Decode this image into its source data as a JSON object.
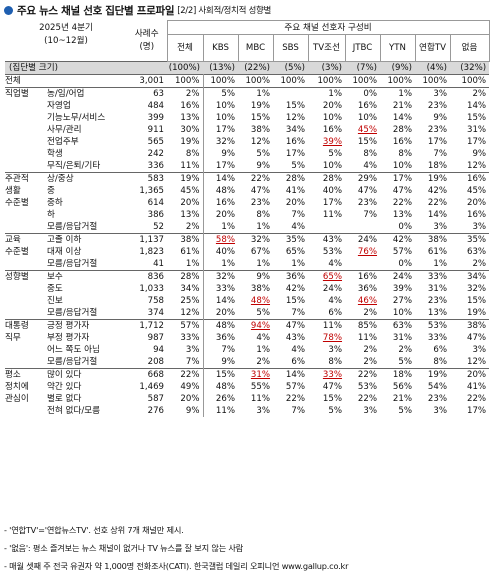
{
  "title": {
    "main": "주요 뉴스 채널 선호 집단별 프로파일",
    "sub": "[2/2] 사회적/정치적 성향별"
  },
  "header": {
    "period_line1": "2025년 4분기",
    "period_line2": "(10~12월)",
    "sample_label": "사례수 (명)",
    "channel_group": "주요 채널 선호자 구성비",
    "group_size_label": "(집단별 크기)",
    "channels": [
      "전체",
      "KBS",
      "MBC",
      "SBS",
      "TV조선",
      "JTBC",
      "YTN",
      "연합TV",
      "없음"
    ],
    "sizes": [
      "(100%)",
      "(13%)",
      "(22%)",
      "(5%)",
      "(3%)",
      "(7%)",
      "(9%)",
      "(4%)",
      "(32%)"
    ]
  },
  "rows": [
    {
      "c1": "전체",
      "c2": "",
      "n": "3,001",
      "v": [
        "100%",
        "100%",
        "100%",
        "100%",
        "100%",
        "100%",
        "100%",
        "100%",
        "100%"
      ],
      "hl": [],
      "first": true
    },
    {
      "c1": "직업별",
      "c2": "농/임/어업",
      "n": "63",
      "v": [
        "2%",
        "5%",
        "1%",
        "",
        "1%",
        "0%",
        "1%",
        "3%",
        "2%"
      ],
      "hl": [],
      "first": true
    },
    {
      "c1": "",
      "c2": "자영업",
      "n": "484",
      "v": [
        "16%",
        "10%",
        "19%",
        "15%",
        "20%",
        "16%",
        "21%",
        "23%",
        "14%"
      ],
      "hl": []
    },
    {
      "c1": "",
      "c2": "기능노무/서비스",
      "n": "399",
      "v": [
        "13%",
        "10%",
        "15%",
        "12%",
        "10%",
        "10%",
        "14%",
        "9%",
        "15%"
      ],
      "hl": []
    },
    {
      "c1": "",
      "c2": "사무/관리",
      "n": "911",
      "v": [
        "30%",
        "17%",
        "38%",
        "34%",
        "16%",
        "45%",
        "28%",
        "23%",
        "31%"
      ],
      "hl": [
        5
      ]
    },
    {
      "c1": "",
      "c2": "전업주부",
      "n": "565",
      "v": [
        "19%",
        "32%",
        "12%",
        "16%",
        "39%",
        "15%",
        "16%",
        "17%",
        "17%"
      ],
      "hl": [
        4
      ]
    },
    {
      "c1": "",
      "c2": "학생",
      "n": "242",
      "n2": "",
      "v": [
        "8%",
        "9%",
        "5%",
        "17%",
        "5%",
        "8%",
        "8%",
        "7%",
        "9%"
      ],
      "hl": []
    },
    {
      "c1": "",
      "c2": "무직/은퇴/기타",
      "n": "336",
      "v": [
        "11%",
        "17%",
        "9%",
        "5%",
        "10%",
        "4%",
        "10%",
        "18%",
        "12%"
      ],
      "hl": []
    },
    {
      "c1": "주관적",
      "c2": "상/중상",
      "n": "583",
      "v": [
        "19%",
        "14%",
        "22%",
        "28%",
        "28%",
        "29%",
        "17%",
        "19%",
        "16%"
      ],
      "hl": [],
      "first": true
    },
    {
      "c1": "생활",
      "c2": "중",
      "n": "1,365",
      "v": [
        "45%",
        "48%",
        "47%",
        "41%",
        "40%",
        "47%",
        "47%",
        "42%",
        "45%"
      ],
      "hl": []
    },
    {
      "c1": "수준별",
      "c2": "중하",
      "n": "614",
      "v": [
        "20%",
        "16%",
        "23%",
        "20%",
        "17%",
        "23%",
        "22%",
        "22%",
        "20%"
      ],
      "hl": []
    },
    {
      "c1": "",
      "c2": "하",
      "n": "386",
      "v": [
        "13%",
        "20%",
        "8%",
        "7%",
        "11%",
        "7%",
        "13%",
        "14%",
        "16%"
      ],
      "hl": []
    },
    {
      "c1": "",
      "c2": "모름/응답거절",
      "n": "52",
      "v": [
        "2%",
        "1%",
        "1%",
        "4%",
        "",
        "",
        "0%",
        "3%",
        "3%"
      ],
      "hl": []
    },
    {
      "c1": "교육",
      "c2": "고졸 이하",
      "n": "1,137",
      "v": [
        "38%",
        "58%",
        "32%",
        "35%",
        "43%",
        "24%",
        "42%",
        "38%",
        "35%"
      ],
      "hl": [
        1
      ],
      "first": true
    },
    {
      "c1": "수준별",
      "c2": "대재 이상",
      "n": "1,823",
      "v": [
        "61%",
        "40%",
        "67%",
        "65%",
        "53%",
        "76%",
        "57%",
        "61%",
        "63%"
      ],
      "hl": [
        5
      ]
    },
    {
      "c1": "",
      "c2": "모름/응답거절",
      "n": "41",
      "v": [
        "1%",
        "1%",
        "1%",
        "1%",
        "4%",
        "",
        "0%",
        "1%",
        "2%"
      ],
      "hl": []
    },
    {
      "c1": "성향별",
      "c2": "보수",
      "n": "836",
      "v": [
        "28%",
        "32%",
        "9%",
        "36%",
        "65%",
        "16%",
        "24%",
        "33%",
        "34%"
      ],
      "hl": [
        4
      ],
      "first": true
    },
    {
      "c1": "",
      "c2": "중도",
      "n": "1,033",
      "v": [
        "34%",
        "33%",
        "38%",
        "42%",
        "24%",
        "36%",
        "39%",
        "31%",
        "32%"
      ],
      "hl": []
    },
    {
      "c1": "",
      "c2": "진보",
      "n": "758",
      "v": [
        "25%",
        "14%",
        "48%",
        "15%",
        "4%",
        "46%",
        "27%",
        "23%",
        "15%"
      ],
      "hl": [
        2,
        5
      ]
    },
    {
      "c1": "",
      "c2": "모름/응답거절",
      "n": "374",
      "v": [
        "12%",
        "20%",
        "5%",
        "7%",
        "6%",
        "2%",
        "10%",
        "13%",
        "19%"
      ],
      "hl": []
    },
    {
      "c1": "대통령",
      "c2": "긍정 평가자",
      "n": "1,712",
      "v": [
        "57%",
        "48%",
        "94%",
        "47%",
        "11%",
        "85%",
        "63%",
        "53%",
        "38%"
      ],
      "hl": [
        2
      ],
      "first": true
    },
    {
      "c1": "직무",
      "c2": "부정 평가자",
      "n": "987",
      "v": [
        "33%",
        "36%",
        "4%",
        "43%",
        "78%",
        "11%",
        "31%",
        "33%",
        "47%"
      ],
      "hl": [
        4
      ]
    },
    {
      "c1": "",
      "c2": "어느 쪽도 아님",
      "n": "94",
      "v": [
        "3%",
        "7%",
        "1%",
        "4%",
        "3%",
        "2%",
        "2%",
        "6%",
        "3%"
      ],
      "hl": []
    },
    {
      "c1": "",
      "c2": "모름/응답거절",
      "n": "208",
      "v": [
        "7%",
        "9%",
        "2%",
        "6%",
        "8%",
        "2%",
        "5%",
        "8%",
        "12%"
      ],
      "hl": []
    },
    {
      "c1": "평소",
      "c2": "많이 있다",
      "n": "668",
      "v": [
        "22%",
        "15%",
        "31%",
        "14%",
        "33%",
        "22%",
        "18%",
        "19%",
        "20%"
      ],
      "hl": [
        2,
        4
      ],
      "first": true
    },
    {
      "c1": "정치에",
      "c2": "약간 있다",
      "n": "1,469",
      "v": [
        "49%",
        "48%",
        "55%",
        "57%",
        "47%",
        "53%",
        "56%",
        "54%",
        "41%"
      ],
      "hl": []
    },
    {
      "c1": "관심이",
      "c2": "별로 없다",
      "n": "587",
      "v": [
        "20%",
        "26%",
        "11%",
        "22%",
        "15%",
        "22%",
        "21%",
        "23%",
        "22%"
      ],
      "hl": []
    },
    {
      "c1": "",
      "c2": "전혀 없다/모름",
      "n": "276",
      "v": [
        "9%",
        "11%",
        "3%",
        "7%",
        "5%",
        "3%",
        "5%",
        "3%",
        "17%"
      ],
      "hl": []
    }
  ],
  "footnotes": [
    "- '연합TV'='연합뉴스TV'. 선호 상위 7개 채널만 제시.",
    "- '없음': 평소 즐겨보는 뉴스 채널이 없거나 TV 뉴스를 잘 보지 않는 사람",
    "- 매월 셋째 주 전국 유권자 약 1,000명 전화조사(CATI). 한국갤럽 데일리 오피니언 www.gallup.co.kr"
  ]
}
